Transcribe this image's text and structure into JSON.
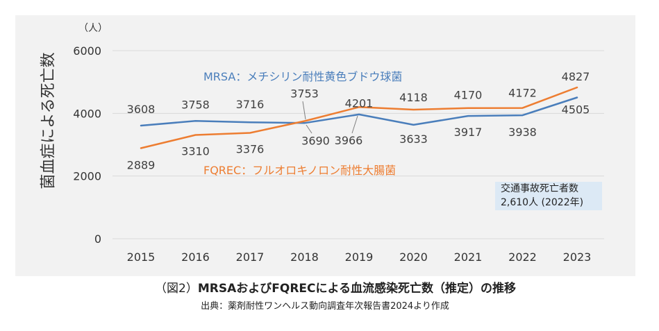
{
  "chart_data": {
    "type": "line",
    "categories": [
      "2015",
      "2016",
      "2017",
      "2018",
      "2019",
      "2020",
      "2021",
      "2022",
      "2023"
    ],
    "series": [
      {
        "name": "MRSA：メチシリン耐性黄色ブドウ球菌",
        "color": "#4a7ebb",
        "values": [
          3608,
          3758,
          3716,
          3690,
          3966,
          3633,
          3917,
          3938,
          4505
        ]
      },
      {
        "name": "FQREC：フルオロキノロン耐性大腸菌",
        "color": "#ed7d31",
        "values": [
          2889,
          3310,
          3376,
          3753,
          4201,
          4118,
          4170,
          4172,
          4827
        ]
      }
    ],
    "ylabel": "菌血症による死亡数",
    "yunit": "（人）",
    "ylim": [
      0,
      6000
    ],
    "yticks": [
      0,
      2000,
      4000,
      6000
    ],
    "grid": true,
    "data_labels": true,
    "background": "#f2f2f2",
    "annotations": {
      "lines": [
        "交通事故死亡者数",
        "2,610人 (2022年)"
      ],
      "background": "#dce9f5"
    },
    "figure_label": "（図2）",
    "title": "MRSAおよびFQRECによる血流感染死亡数（推定）の推移",
    "source": "出典：薬剤耐性ワンヘルス動向調査年次報告書2024より作成"
  }
}
